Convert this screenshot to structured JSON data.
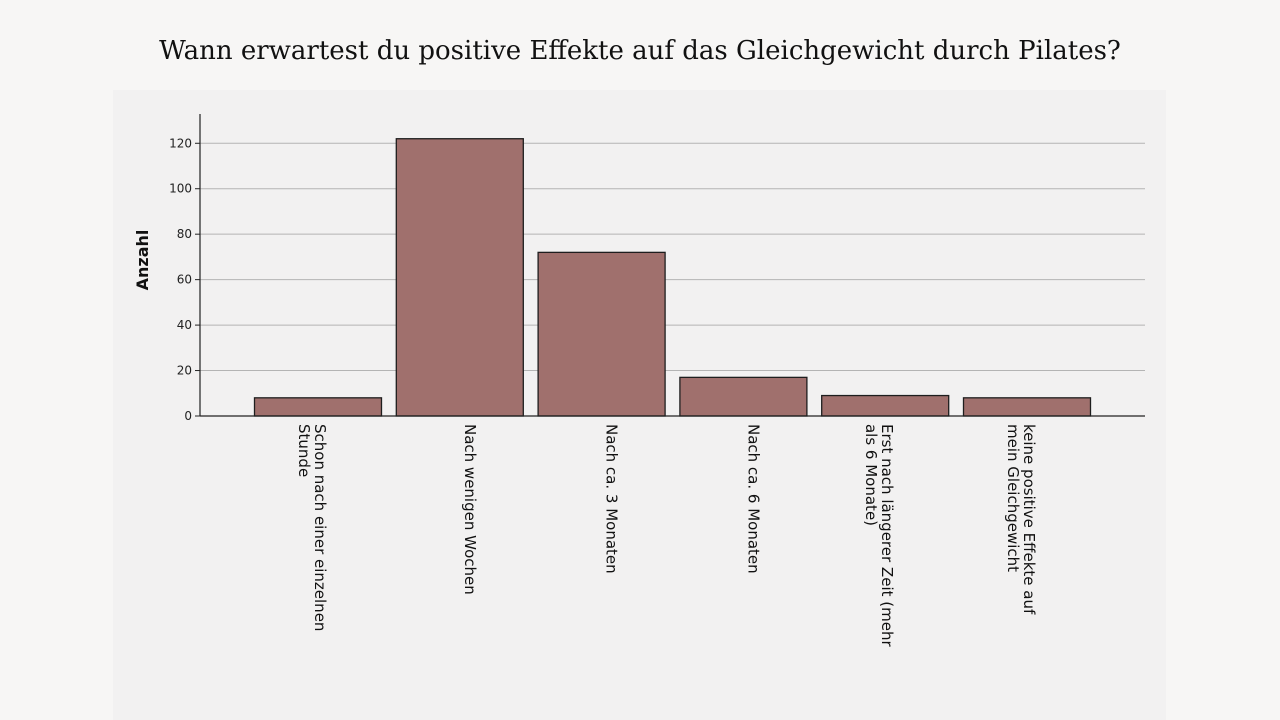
{
  "page": {
    "title": "Wann erwartest du positive Effekte auf das Gleichgewicht durch Pilates?"
  },
  "chart_data": {
    "type": "bar",
    "title": "Wann erwartest du positive Effekte auf das Gleichgewicht durch Pilates?",
    "ylabel": "Anzahl",
    "xlabel": "",
    "categories": [
      [
        "Schon nach einer einzelnen",
        "Stunde"
      ],
      [
        "Nach wenigen Wochen"
      ],
      [
        "Nach ca. 3 Monaten"
      ],
      [
        "Nach ca. 6 Monaten"
      ],
      [
        "Erst nach längerer Zeit (mehr",
        "als 6 Monate)"
      ],
      [
        "keine positive Effekte auf",
        "mein Gleichgewicht"
      ]
    ],
    "values": [
      8,
      122,
      72,
      17,
      9,
      8
    ],
    "ylim": [
      0,
      132
    ],
    "yticks": [
      0,
      20,
      40,
      60,
      80,
      100,
      120
    ],
    "grid": true,
    "bar_color": "#a0706d",
    "bar_edge_color": "#1e1e1e",
    "gridline_color": "#b4b4b4"
  }
}
